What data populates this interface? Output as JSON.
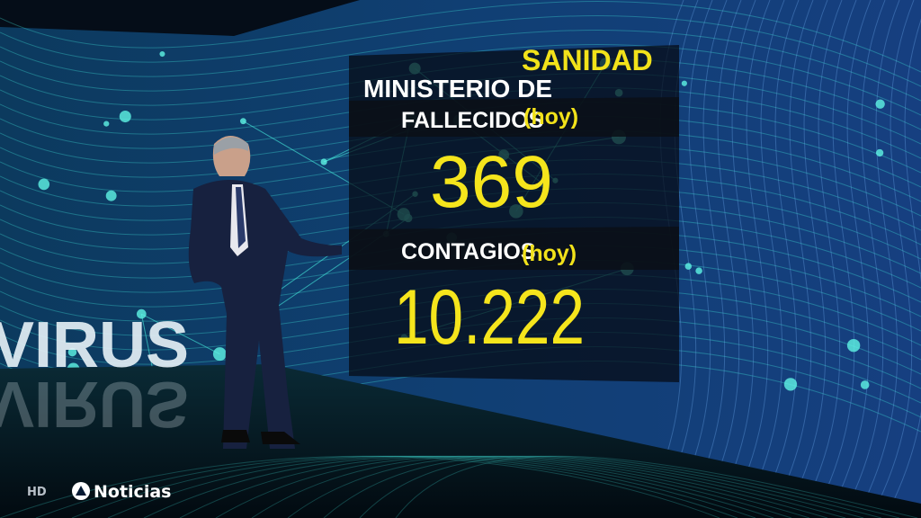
{
  "graphic": {
    "title_prefix": "MINISTERIO DE",
    "title_highlight": "SANIDAD",
    "stats": [
      {
        "label": "FALLECIDOS",
        "note": "(hoy)",
        "value": "369"
      },
      {
        "label": "CONTAGIOS",
        "note": "(hoy)",
        "value": "10.222"
      }
    ]
  },
  "backdrop": {
    "word": "VIRUS"
  },
  "logo": {
    "quality": "HD",
    "brand": "Noticias"
  }
}
